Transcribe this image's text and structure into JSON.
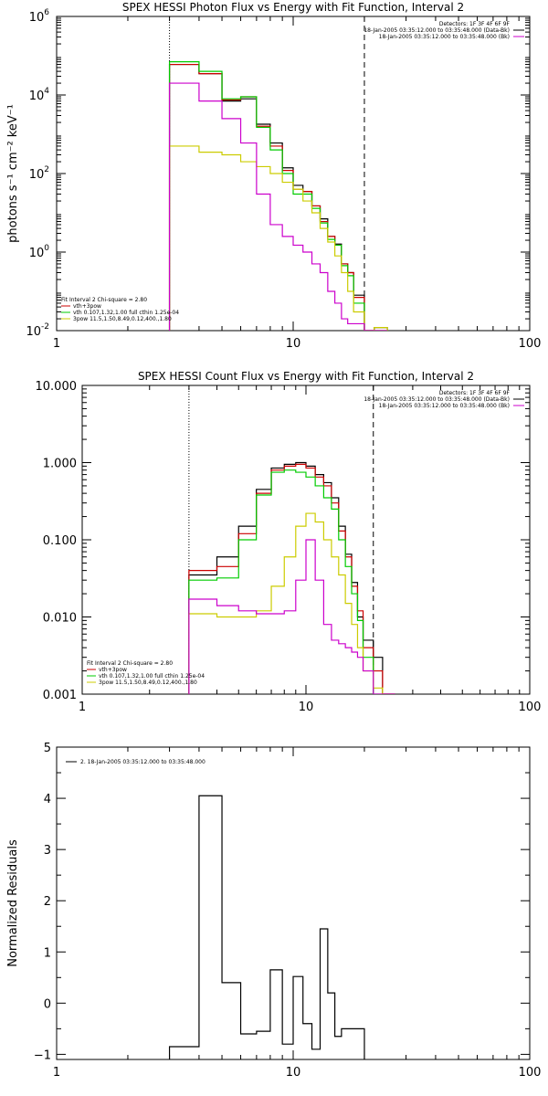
{
  "chart_data": [
    {
      "type": "line",
      "panel": "photon-flux",
      "title": "SPEX HESSI Photon Flux vs Energy with Fit Function, Interval 2",
      "ylabel": "photons s⁻¹ cm⁻² keV⁻¹",
      "xlabel": "",
      "xscale": "log",
      "yscale": "log",
      "xlim": [
        1,
        100
      ],
      "ylim": [
        0.01,
        1000000
      ],
      "xticks": [
        {
          "v": 1,
          "label": "1"
        },
        {
          "v": 10,
          "label": "10"
        },
        {
          "v": 100,
          "label": "100"
        }
      ],
      "yticks": [
        {
          "v": 0.01,
          "base": "10",
          "exp": "-2"
        },
        {
          "v": 1,
          "base": "10",
          "exp": "0"
        },
        {
          "v": 100,
          "base": "10",
          "exp": "2"
        },
        {
          "v": 10000,
          "base": "10",
          "exp": "4"
        },
        {
          "v": 1000000,
          "base": "10",
          "exp": "6"
        }
      ],
      "vlines": [
        {
          "x": 3,
          "style": "dotted"
        },
        {
          "x": 20,
          "style": "dashed"
        }
      ],
      "corner_text": [
        "Detectors: 1F 3F 4F 6F 9F",
        "18-Jan-2005 03:35:12.000 to 03:35:48.000 (Data-Bk)",
        "18-Jan-2005 03:35:12.000 to 03:35:48.000 (Bk)"
      ],
      "corner_colors": [
        "#000000",
        "#000000",
        "#cc00cc"
      ],
      "legend_header": "Fit Interval 2   Chi-square = 2.80",
      "legend": [
        {
          "label": "vth+3pow",
          "color": "#cc0000"
        },
        {
          "label": "vth 0.107,1.32,1.00  full cthin 1.25e-04",
          "color": "#00cc00"
        },
        {
          "label": "3pow 11.5,1.50,8.49,0.12,400.,1.80",
          "color": "#cccc00"
        }
      ],
      "bin_edges": [
        3,
        4,
        5,
        6,
        7,
        8,
        9,
        10,
        11,
        12,
        13,
        14,
        15,
        16,
        17,
        18,
        20,
        22,
        25
      ],
      "series": [
        {
          "name": "18-Jan-2005 03:35:12.000 to 03:35:48.000 (Data-Bk)",
          "color": "#000000",
          "values": [
            60000,
            35000,
            7000,
            8000,
            1800,
            600,
            140,
            50,
            35,
            15,
            7,
            2.5,
            1.6,
            0.5,
            0.3,
            0.08,
            0.01,
            0.012
          ]
        },
        {
          "name": "vth+3pow",
          "color": "#cc0000",
          "values": [
            60000,
            35000,
            7500,
            9000,
            1600,
            500,
            120,
            40,
            35,
            15,
            6,
            2.5,
            1.5,
            0.5,
            0.3,
            0.07,
            0.009,
            0.01
          ]
        },
        {
          "name": "vth 0.107,1.32,1.00  full cthin 1.25e-04",
          "color": "#00cc00",
          "values": [
            70000,
            40000,
            8000,
            9000,
            1500,
            400,
            100,
            30,
            30,
            13,
            5.5,
            2.1,
            1.5,
            0.45,
            0.25,
            0.05,
            0.005,
            0.008
          ]
        },
        {
          "name": "3pow 11.5,1.50,8.49,0.12,400.,1.80",
          "color": "#cccc00",
          "values": [
            500,
            350,
            300,
            200,
            150,
            100,
            60,
            40,
            20,
            10,
            4,
            1.8,
            0.8,
            0.3,
            0.1,
            0.03,
            0.01,
            0.012
          ]
        },
        {
          "name": "18-Jan-2005 03:35:12.000 to 03:35:48.000 (Bk)",
          "color": "#cc00cc",
          "values": [
            20000,
            7000,
            2500,
            600,
            30,
            5,
            2.5,
            1.5,
            1,
            0.5,
            0.3,
            0.1,
            0.05,
            0.02,
            0.015,
            0.015,
            0.01,
            0.01
          ]
        }
      ]
    },
    {
      "type": "line",
      "panel": "count-flux",
      "title": "SPEX HESSI Count Flux vs Energy with Fit Function, Interval 2",
      "xlabel": "",
      "ylabel": "",
      "xscale": "log",
      "yscale": "log",
      "xlim": [
        1,
        100
      ],
      "ylim": [
        0.001,
        10
      ],
      "xticks": [
        {
          "v": 1,
          "label": "1"
        },
        {
          "v": 10,
          "label": "10"
        },
        {
          "v": 100,
          "label": "100"
        }
      ],
      "yticks": [
        {
          "v": 0.001,
          "label": "0.001"
        },
        {
          "v": 0.01,
          "label": "0.010"
        },
        {
          "v": 0.1,
          "label": "0.100"
        },
        {
          "v": 1,
          "label": "1.000"
        },
        {
          "v": 10,
          "label": "10.000"
        }
      ],
      "vlines": [
        {
          "x": 3,
          "style": "dotted"
        },
        {
          "x": 20,
          "style": "dashed"
        }
      ],
      "corner_text": [
        "Detectors: 1F 3F 4F 6F 9F",
        "18-Jan-2005 03:35:12.000 to 03:35:48.000 (Data-Bk)",
        "18-Jan-2005 03:35:12.000 to 03:35:48.000 (Bk)"
      ],
      "corner_colors": [
        "#000000",
        "#000000",
        "#cc00cc"
      ],
      "legend_header": "Fit Interval 2   Chi-square = 2.80",
      "legend": [
        {
          "label": "vth+3pow",
          "color": "#cc0000"
        },
        {
          "label": "vth 0.107,1.32,1.00  full cthin 1.25e-04",
          "color": "#00cc00"
        },
        {
          "label": "3pow 11.5,1.50,8.49,0.12,400.,1.80",
          "color": "#cccc00"
        }
      ],
      "bin_edges": [
        3,
        4,
        5,
        6,
        7,
        8,
        9,
        10,
        11,
        12,
        13,
        14,
        15,
        16,
        17,
        18,
        20,
        22,
        25
      ],
      "series": [
        {
          "name": "18-Jan-2005 03:35:12.000 to 03:35:48.000 (Data-Bk)",
          "color": "#000000",
          "values": [
            0.035,
            0.06,
            0.15,
            0.45,
            0.85,
            0.95,
            1.0,
            0.9,
            0.7,
            0.55,
            0.35,
            0.15,
            0.065,
            0.028,
            0.01,
            0.005,
            0.003,
            0.001
          ]
        },
        {
          "name": "vth+3pow",
          "color": "#cc0000",
          "values": [
            0.04,
            0.045,
            0.12,
            0.4,
            0.8,
            0.9,
            0.95,
            0.85,
            0.65,
            0.5,
            0.3,
            0.13,
            0.06,
            0.025,
            0.012,
            0.004,
            0.002,
            0.001
          ]
        },
        {
          "name": "vth 0.107,1.32,1.00  full cthin 1.25e-04",
          "color": "#00cc00",
          "values": [
            0.03,
            0.032,
            0.1,
            0.38,
            0.75,
            0.8,
            0.75,
            0.65,
            0.5,
            0.35,
            0.25,
            0.1,
            0.045,
            0.02,
            0.009,
            0.003,
            0.001,
            0.001
          ]
        },
        {
          "name": "3pow 11.5,1.50,8.49,0.12,400.,1.80",
          "color": "#cccc00",
          "values": [
            0.011,
            0.01,
            0.01,
            0.012,
            0.025,
            0.06,
            0.15,
            0.22,
            0.17,
            0.1,
            0.06,
            0.035,
            0.015,
            0.008,
            0.004,
            0.002,
            0.0012,
            0.001
          ]
        },
        {
          "name": "18-Jan-2005 03:35:12.000 to 03:35:48.000 (Bk)",
          "color": "#cc00cc",
          "values": [
            0.017,
            0.014,
            0.012,
            0.011,
            0.011,
            0.012,
            0.03,
            0.1,
            0.03,
            0.008,
            0.005,
            0.0045,
            0.004,
            0.0035,
            0.003,
            0.002,
            0.001,
            0.001
          ]
        }
      ]
    },
    {
      "type": "line",
      "panel": "residuals",
      "title": "",
      "ylabel": "Normalized Residuals",
      "xlabel": "",
      "xscale": "log",
      "yscale": "linear",
      "xlim": [
        1,
        100
      ],
      "ylim": [
        -1.1,
        5
      ],
      "xticks": [
        {
          "v": 1,
          "label": "1"
        },
        {
          "v": 10,
          "label": "10"
        },
        {
          "v": 100,
          "label": "100"
        }
      ],
      "yticks": [
        {
          "v": -1,
          "label": "−1"
        },
        {
          "v": 0,
          "label": "0"
        },
        {
          "v": 1,
          "label": "1"
        },
        {
          "v": 2,
          "label": "2"
        },
        {
          "v": 3,
          "label": "3"
        },
        {
          "v": 4,
          "label": "4"
        },
        {
          "v": 5,
          "label": "5"
        }
      ],
      "legend": [
        {
          "label": "2. 18-Jan-2005 03:35:12.000 to 03:35:48.000",
          "color": "#000000"
        }
      ],
      "bin_edges": [
        3,
        4,
        5,
        6,
        7,
        8,
        9,
        10,
        11,
        12,
        13,
        14,
        15,
        16,
        17,
        18,
        20
      ],
      "series": [
        {
          "name": "2. 18-Jan-2005 03:35:12.000 to 03:35:48.000",
          "color": "#000000",
          "values": [
            -0.85,
            4.05,
            0.4,
            -0.6,
            -0.55,
            0.65,
            -0.8,
            0.52,
            -0.4,
            -0.9,
            1.45,
            0.2,
            -0.65,
            -0.5,
            -0.5,
            -0.5
          ]
        }
      ]
    }
  ]
}
